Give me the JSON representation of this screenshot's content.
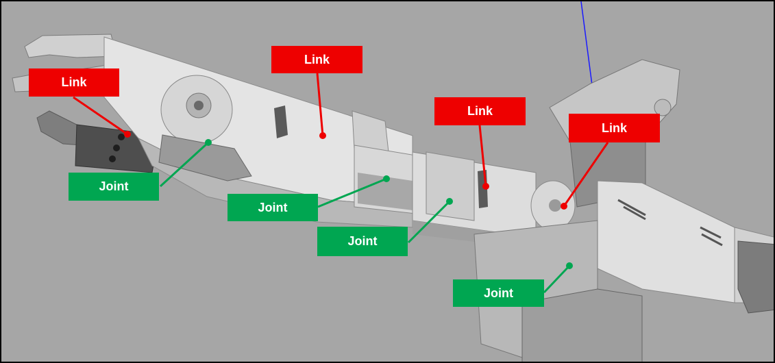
{
  "colors": {
    "background": "#a6a6a6",
    "link": "#ee0000",
    "joint": "#00a651",
    "part_light": "#e6e6e6",
    "part_mid": "#c8c8c8",
    "part_dark": "#8c8c8c",
    "axis": "#1a1aff"
  },
  "annotations": {
    "links": [
      {
        "id": "link-1",
        "label": "Link"
      },
      {
        "id": "link-2",
        "label": "Link"
      },
      {
        "id": "link-3",
        "label": "Link"
      },
      {
        "id": "link-4",
        "label": "Link"
      }
    ],
    "joints": [
      {
        "id": "joint-1",
        "label": "Joint"
      },
      {
        "id": "joint-2",
        "label": "Joint"
      },
      {
        "id": "joint-3",
        "label": "Joint"
      },
      {
        "id": "joint-4",
        "label": "Joint"
      }
    ]
  }
}
